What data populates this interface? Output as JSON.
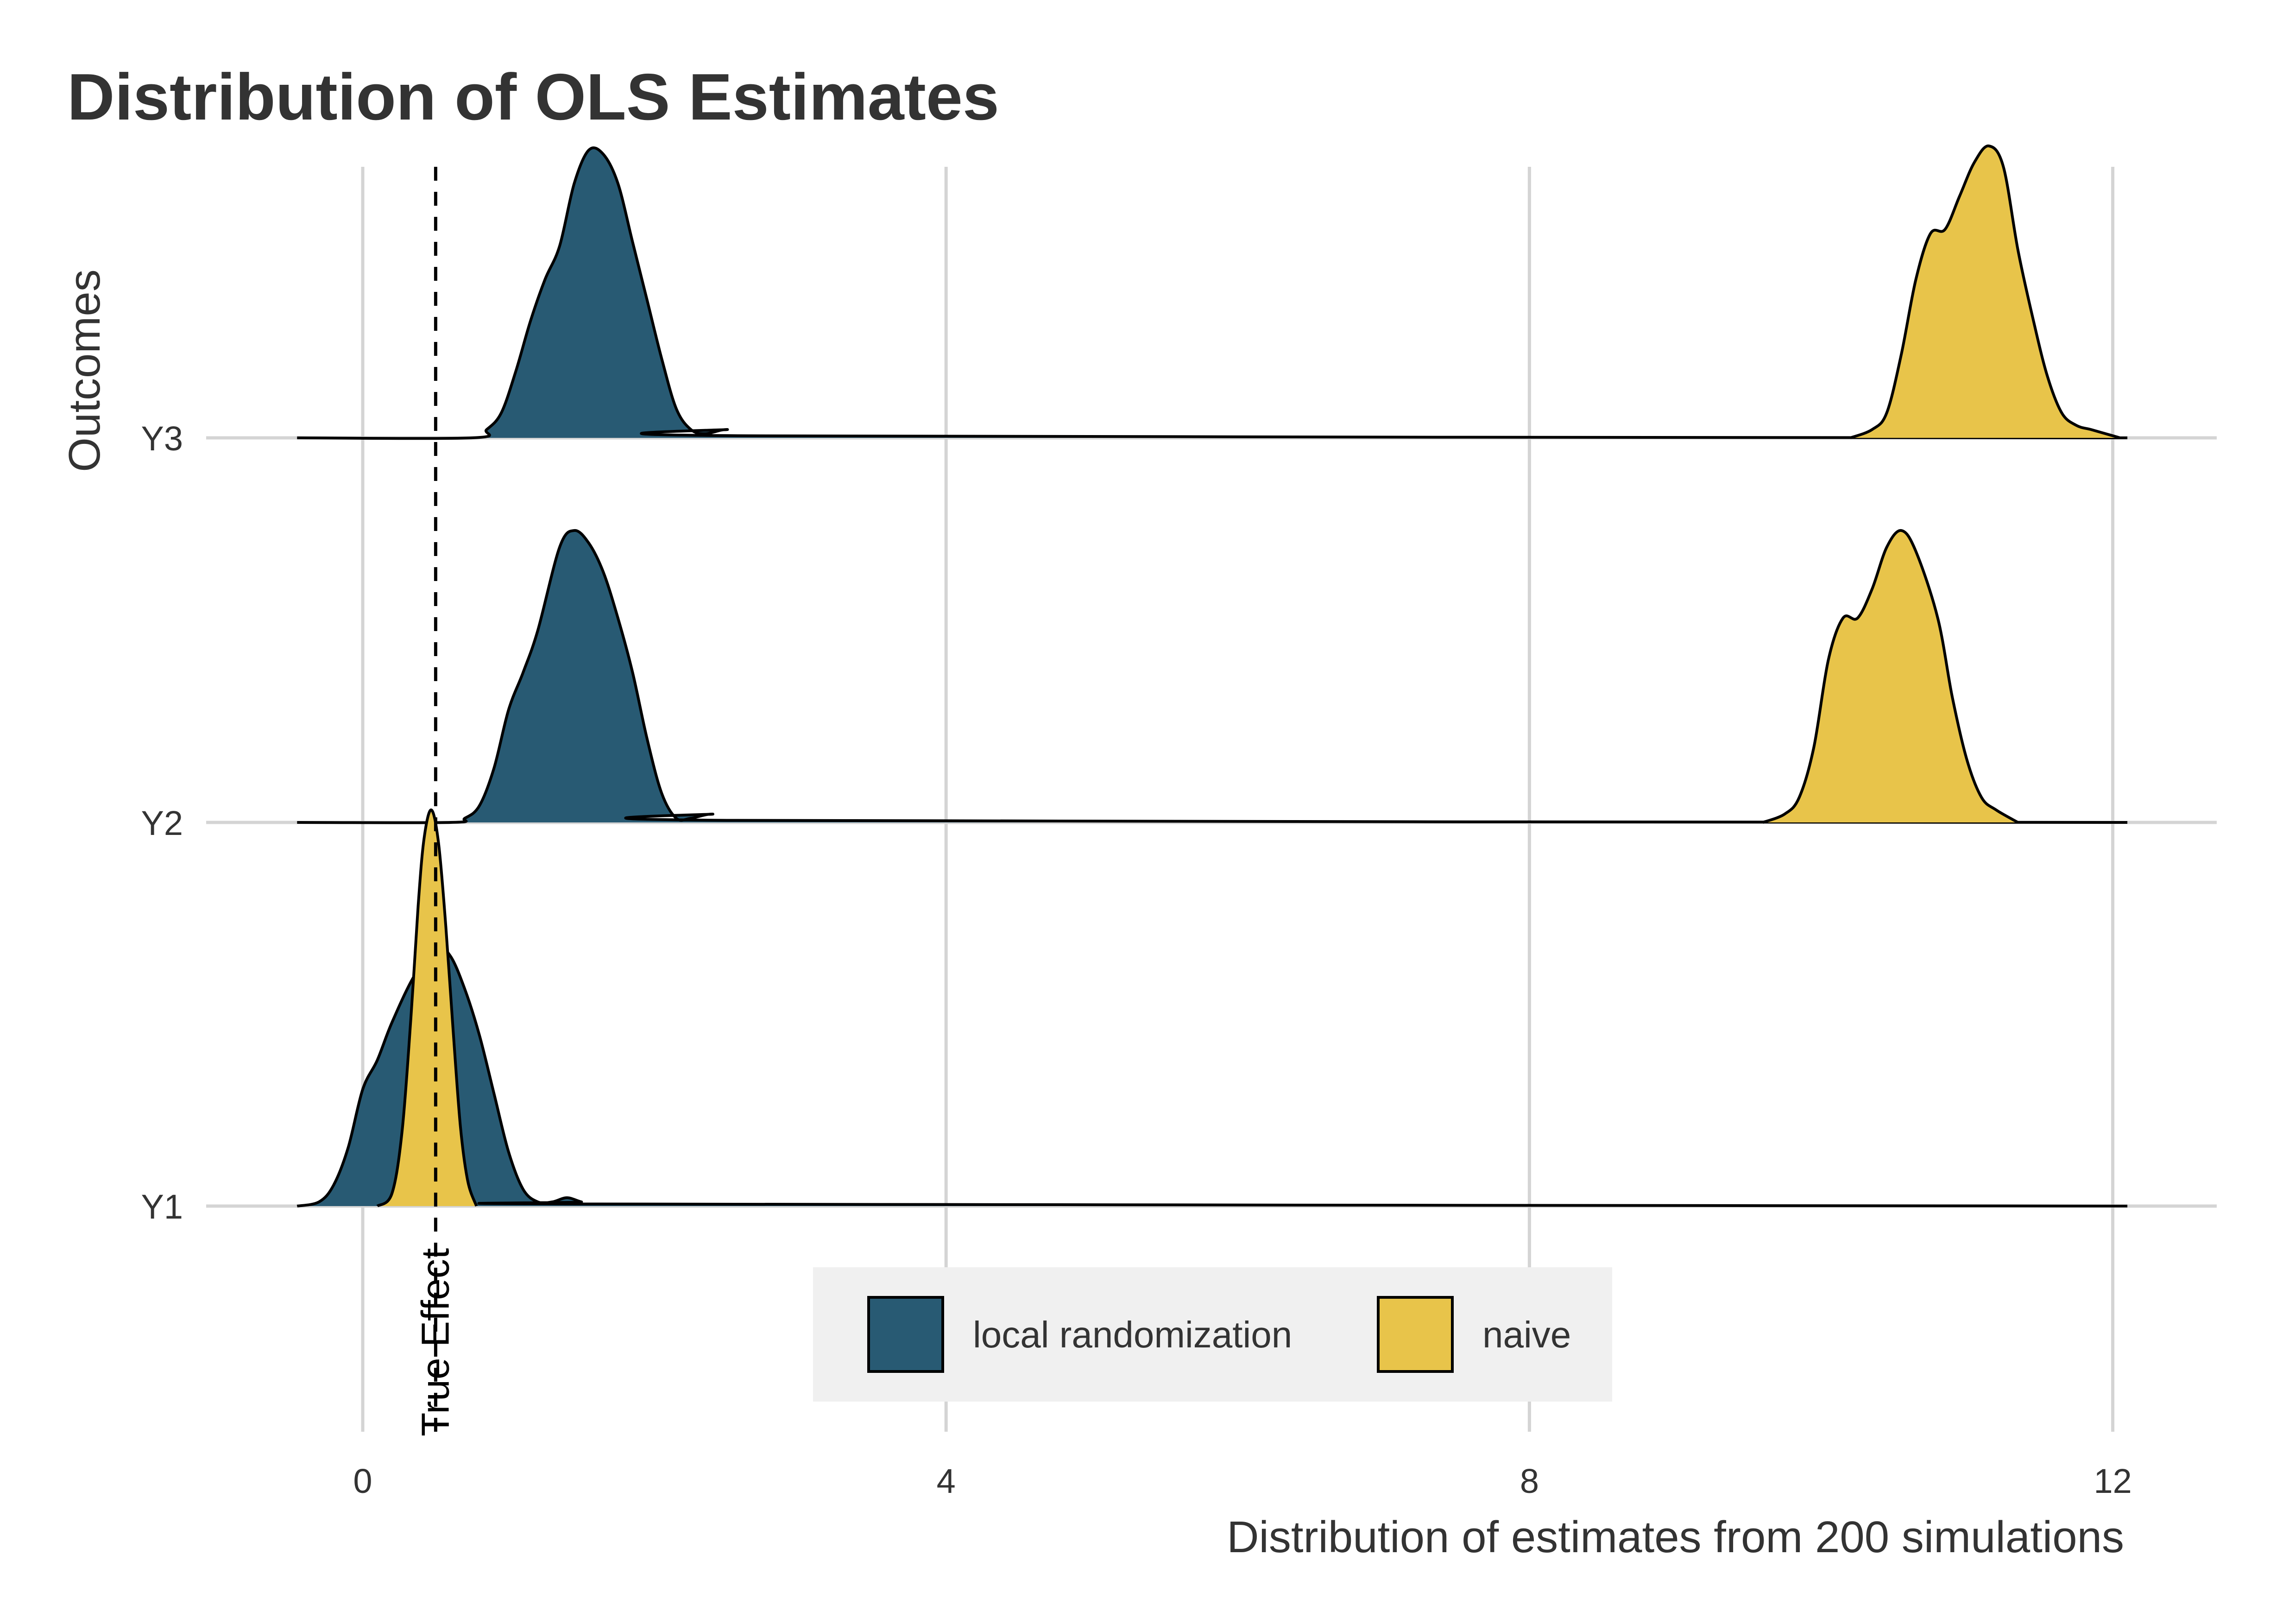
{
  "chart_data": {
    "type": "ridgeline",
    "title": "Distribution of OLS Estimates",
    "xlabel": "Distribution of estimates from 200 simulations",
    "ylabel": "Outcomes",
    "xlim": [
      -1.0,
      12.7
    ],
    "x_ticks": [
      0,
      4,
      8,
      12
    ],
    "x_tick_labels": [
      "0",
      "4",
      "8",
      "12"
    ],
    "categories": [
      "Y1",
      "Y2",
      "Y3"
    ],
    "grid": true,
    "legend_position": "bottom",
    "reference_line": {
      "x": 0.5,
      "label": "True Effect",
      "style": "dashed"
    },
    "colors": {
      "local randomization": "#285a73",
      "naive": "#e8c44a"
    },
    "series": [
      {
        "name": "local randomization",
        "color": "#285a73",
        "densities": [
          {
            "category": "Y1",
            "points": [
              [
                -0.45,
                0
              ],
              [
                -0.3,
                0.01
              ],
              [
                -0.2,
                0.05
              ],
              [
                -0.1,
                0.14
              ],
              [
                0.0,
                0.28
              ],
              [
                0.1,
                0.35
              ],
              [
                0.2,
                0.44
              ],
              [
                0.35,
                0.55
              ],
              [
                0.5,
                0.62
              ],
              [
                0.6,
                0.6
              ],
              [
                0.7,
                0.52
              ],
              [
                0.8,
                0.41
              ],
              [
                0.9,
                0.27
              ],
              [
                1.0,
                0.13
              ],
              [
                1.1,
                0.04
              ],
              [
                1.2,
                0.01
              ],
              [
                1.3,
                0.01
              ],
              [
                1.4,
                0.02
              ],
              [
                1.5,
                0.01
              ],
              [
                1.6,
                0.005
              ],
              [
                12.1,
                0
              ]
            ]
          },
          {
            "category": "Y2",
            "points": [
              [
                -0.45,
                0
              ],
              [
                0.6,
                0
              ],
              [
                0.7,
                0.01
              ],
              [
                0.8,
                0.04
              ],
              [
                0.9,
                0.13
              ],
              [
                1.0,
                0.27
              ],
              [
                1.1,
                0.36
              ],
              [
                1.2,
                0.46
              ],
              [
                1.35,
                0.66
              ],
              [
                1.45,
                0.7
              ],
              [
                1.55,
                0.67
              ],
              [
                1.65,
                0.6
              ],
              [
                1.75,
                0.49
              ],
              [
                1.85,
                0.36
              ],
              [
                1.95,
                0.2
              ],
              [
                2.05,
                0.07
              ],
              [
                2.15,
                0.01
              ],
              [
                2.25,
                0.01
              ],
              [
                2.4,
                0.02
              ],
              [
                2.55,
                0.005
              ],
              [
                12.1,
                0
              ]
            ]
          },
          {
            "category": "Y3",
            "points": [
              [
                -0.45,
                0
              ],
              [
                0.75,
                0
              ],
              [
                0.85,
                0.02
              ],
              [
                0.95,
                0.06
              ],
              [
                1.05,
                0.16
              ],
              [
                1.15,
                0.28
              ],
              [
                1.25,
                0.38
              ],
              [
                1.35,
                0.46
              ],
              [
                1.45,
                0.61
              ],
              [
                1.55,
                0.69
              ],
              [
                1.65,
                0.68
              ],
              [
                1.75,
                0.61
              ],
              [
                1.85,
                0.47
              ],
              [
                1.95,
                0.33
              ],
              [
                2.05,
                0.19
              ],
              [
                2.15,
                0.07
              ],
              [
                2.25,
                0.02
              ],
              [
                2.35,
                0.01
              ],
              [
                2.5,
                0.02
              ],
              [
                2.65,
                0.005
              ],
              [
                12.1,
                0
              ]
            ]
          }
        ]
      },
      {
        "name": "naive",
        "color": "#e8c44a",
        "densities": [
          {
            "category": "Y1",
            "points": [
              [
                0.1,
                0
              ],
              [
                0.2,
                0.03
              ],
              [
                0.27,
                0.18
              ],
              [
                0.33,
                0.45
              ],
              [
                0.38,
                0.72
              ],
              [
                0.42,
                0.88
              ],
              [
                0.47,
                0.95
              ],
              [
                0.52,
                0.87
              ],
              [
                0.57,
                0.67
              ],
              [
                0.62,
                0.42
              ],
              [
                0.67,
                0.19
              ],
              [
                0.72,
                0.06
              ],
              [
                0.78,
                0
              ]
            ]
          },
          {
            "category": "Y2",
            "points": [
              [
                9.6,
                0
              ],
              [
                9.75,
                0.02
              ],
              [
                9.85,
                0.06
              ],
              [
                9.95,
                0.18
              ],
              [
                10.05,
                0.39
              ],
              [
                10.15,
                0.49
              ],
              [
                10.25,
                0.49
              ],
              [
                10.35,
                0.56
              ],
              [
                10.45,
                0.66
              ],
              [
                10.55,
                0.7
              ],
              [
                10.65,
                0.65
              ],
              [
                10.8,
                0.49
              ],
              [
                10.9,
                0.3
              ],
              [
                11.0,
                0.15
              ],
              [
                11.1,
                0.06
              ],
              [
                11.2,
                0.03
              ],
              [
                11.35,
                0
              ]
            ]
          },
          {
            "category": "Y3",
            "points": [
              [
                10.2,
                0
              ],
              [
                10.35,
                0.02
              ],
              [
                10.45,
                0.06
              ],
              [
                10.55,
                0.2
              ],
              [
                10.65,
                0.38
              ],
              [
                10.75,
                0.49
              ],
              [
                10.85,
                0.5
              ],
              [
                10.95,
                0.58
              ],
              [
                11.05,
                0.66
              ],
              [
                11.15,
                0.7
              ],
              [
                11.25,
                0.65
              ],
              [
                11.35,
                0.45
              ],
              [
                11.45,
                0.29
              ],
              [
                11.55,
                0.15
              ],
              [
                11.65,
                0.06
              ],
              [
                11.75,
                0.03
              ],
              [
                11.85,
                0.02
              ],
              [
                11.95,
                0.01
              ],
              [
                12.05,
                0
              ]
            ]
          }
        ]
      }
    ]
  }
}
